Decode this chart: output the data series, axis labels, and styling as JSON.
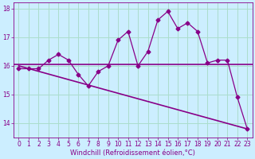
{
  "xlabel": "Windchill (Refroidissement éolien,°C)",
  "background_color": "#cceeff",
  "grid_color": "#aaddcc",
  "line_color": "#880088",
  "hours": [
    0,
    1,
    2,
    3,
    4,
    5,
    6,
    7,
    8,
    9,
    10,
    11,
    12,
    13,
    14,
    15,
    16,
    17,
    18,
    19,
    20,
    21,
    22,
    23
  ],
  "windchill": [
    15.9,
    15.9,
    15.9,
    16.2,
    16.4,
    16.2,
    15.7,
    15.3,
    15.8,
    16.0,
    16.9,
    17.2,
    16.0,
    16.5,
    17.6,
    17.9,
    17.3,
    17.5,
    17.2,
    16.1,
    16.2,
    16.2,
    14.9,
    13.8
  ],
  "hline_y": 16.05,
  "trend_x": [
    0,
    23
  ],
  "trend_y": [
    16.0,
    13.8
  ],
  "ylim": [
    13.5,
    18.2
  ],
  "xlim": [
    -0.5,
    23.5
  ],
  "yticks": [
    14,
    15,
    16,
    17,
    18
  ],
  "xticks": [
    0,
    1,
    2,
    3,
    4,
    5,
    6,
    7,
    8,
    9,
    10,
    11,
    12,
    13,
    14,
    15,
    16,
    17,
    18,
    19,
    20,
    21,
    22,
    23
  ],
  "tick_fontsize": 5.5,
  "xlabel_fontsize": 6.0
}
